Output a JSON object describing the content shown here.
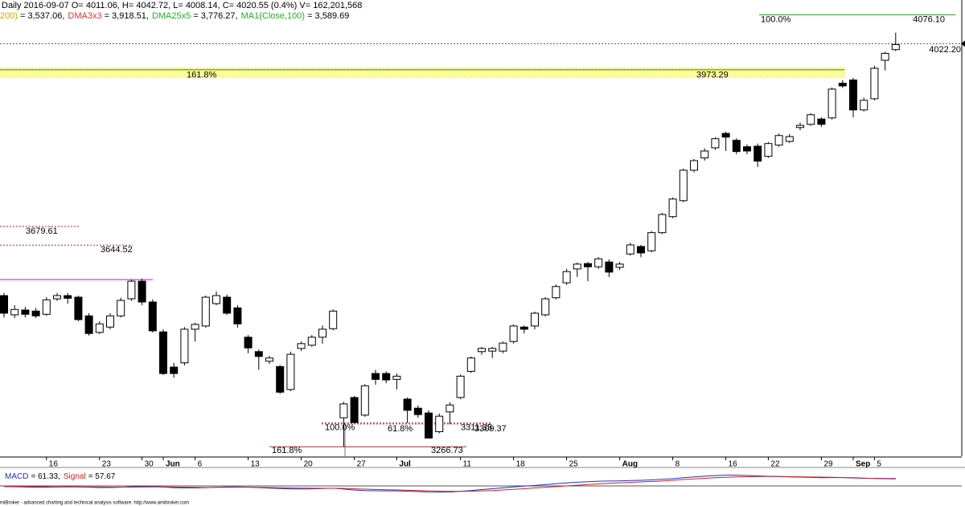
{
  "chart_data": [
    {
      "type": "candlestick",
      "title": "Daily 2016-09-07 O= 4011.06, H= 4042.72, L= 4008.14, C= 4020.55 (0.4%) V= 162,201,568",
      "indicators": [
        {
          "name": "200)",
          "text": "= 3,537.06,",
          "color": "#d4a800"
        },
        {
          "name": "DMA3x3",
          "text": "= 3,918.51,",
          "color": "#e03030"
        },
        {
          "name": "DMA25x5",
          "text": "= 3,776.27,",
          "color": "#20b020"
        },
        {
          "name": "MA1(Close,100)",
          "text": "= 3,589.69",
          "color": "#20b020"
        }
      ],
      "categories": [
        null,
        null,
        null,
        null,
        "16",
        null,
        null,
        null,
        null,
        "23",
        null,
        null,
        null,
        "30",
        null,
        "Jun",
        null,
        null,
        "6",
        null,
        null,
        null,
        null,
        "13",
        null,
        null,
        null,
        null,
        "20",
        null,
        null,
        null,
        null,
        "27",
        null,
        null,
        null,
        "Jul",
        null,
        null,
        null,
        null,
        null,
        "11",
        null,
        null,
        null,
        null,
        "18",
        null,
        null,
        null,
        null,
        "25",
        null,
        null,
        null,
        null,
        "Aug",
        null,
        null,
        null,
        null,
        "8",
        null,
        null,
        null,
        null,
        "16",
        null,
        null,
        null,
        "22",
        null,
        null,
        null,
        null,
        "29",
        null,
        null,
        "Sep",
        null,
        "5",
        null,
        null
      ],
      "open": [
        3550,
        3514,
        3523,
        3521,
        3515,
        3544,
        3550,
        3547,
        3512,
        3481,
        3491,
        3512,
        3544,
        3577,
        3538,
        3482,
        3416,
        3424,
        3487,
        3493,
        3535,
        3547,
        3527,
        3472,
        3445,
        3427,
        3417,
        3374,
        3451,
        3457,
        3472,
        3488,
        3321,
        3359,
        3326,
        3404,
        3404,
        3393,
        3356,
        3339,
        3330,
        3295,
        3332,
        3359,
        3408,
        3445,
        3446,
        3446,
        3464,
        3491,
        3493,
        3514,
        3546,
        3574,
        3600,
        3610,
        3604,
        3613,
        3603,
        3628,
        3642,
        3634,
        3668,
        3698,
        3728,
        3785,
        3808,
        3827,
        3854,
        3841,
        3829,
        3830,
        3811,
        3832,
        3839,
        3865,
        3871,
        3881,
        3883,
        3948,
        3954,
        3898,
        3919,
        3991,
        4011.06
      ],
      "high": [
        3555,
        3532,
        3529,
        3527,
        3547,
        3555,
        3555,
        3550,
        3517,
        3502,
        3517,
        3546,
        3580,
        3582,
        3543,
        3487,
        3424,
        3491,
        3499,
        3550,
        3558,
        3552,
        3532,
        3476,
        3449,
        3437,
        3420,
        3445,
        3464,
        3476,
        3494,
        3524,
        3351,
        3362,
        3384,
        3411,
        3408,
        3404,
        3359,
        3344,
        3335,
        3329,
        3350,
        3402,
        3436,
        3454,
        3454,
        3464,
        3496,
        3494,
        3520,
        3547,
        3571,
        3600,
        3612,
        3613,
        3622,
        3618,
        3613,
        3649,
        3645,
        3671,
        3705,
        3734,
        3788,
        3806,
        3826,
        3847,
        3857,
        3845,
        3833,
        3835,
        3838,
        3854,
        3853,
        3874,
        3892,
        3884,
        3940,
        3954,
        3958,
        3921,
        3981,
        4007,
        4042.72
      ],
      "low": [
        3509,
        3508,
        3509,
        3508,
        3512,
        3540,
        3535,
        3502,
        3475,
        3478,
        3487,
        3509,
        3540,
        3532,
        3481,
        3401,
        3396,
        3419,
        3464,
        3490,
        3532,
        3514,
        3490,
        3442,
        3411,
        3422,
        3366,
        3371,
        3446,
        3454,
        3460,
        3485,
        3266.73,
        3311,
        3323,
        3383,
        3386,
        3374,
        3311,
        3321,
        3282,
        3292,
        3309,
        3356,
        3405,
        3439,
        3433,
        3442,
        3460,
        3479,
        3487,
        3511,
        3543,
        3570,
        3585,
        3577,
        3600,
        3585,
        3598,
        3625,
        3622,
        3631,
        3665,
        3695,
        3725,
        3781,
        3803,
        3823,
        3821,
        3815,
        3815,
        3791,
        3808,
        3829,
        3836,
        3860,
        3868,
        3866,
        3880,
        3939,
        3884,
        3895,
        3916,
        3972,
        4008.14
      ],
      "close": [
        3517,
        3524,
        3515,
        3512,
        3542,
        3550,
        3545,
        3505,
        3479,
        3497,
        3512,
        3541,
        3577,
        3538,
        3484,
        3404,
        3404,
        3487,
        3496,
        3547,
        3550,
        3517,
        3497,
        3452,
        3436,
        3433,
        3369,
        3440,
        3460,
        3472,
        3487,
        3521,
        3347,
        3312,
        3381,
        3393,
        3392,
        3399,
        3335,
        3327,
        3283,
        3324,
        3345,
        3399,
        3433,
        3451,
        3451,
        3461,
        3493,
        3487,
        3517,
        3544,
        3567,
        3595,
        3609,
        3604,
        3619,
        3594,
        3609,
        3645,
        3630,
        3668,
        3702,
        3731,
        3785,
        3803,
        3821,
        3844,
        3847,
        3820,
        3821,
        3802,
        3835,
        3850,
        3848,
        3869,
        3889,
        3871,
        3937,
        3943,
        3898,
        3916,
        3976,
        4004,
        4020.55
      ],
      "up_color": "#ffffff",
      "down_color": "#000000",
      "ylim": [
        3249,
        4104
      ],
      "levels": [
        {
          "value": 4076.1,
          "label": "4076.10",
          "pct": "100.0%",
          "color": "#2ca02c"
        },
        {
          "value": 4022.2,
          "label": "4022.20",
          "color": "#cc2222"
        },
        {
          "value": 3973.29,
          "pct": "161.8%",
          "color": "#2c8a2c"
        },
        {
          "value": 3580,
          "color": "#e000e0"
        },
        {
          "value": 3679.61,
          "color": "#cc2222"
        },
        {
          "value": 3644.52,
          "color": "#cc2222"
        },
        {
          "value": 3311.35,
          "pct": "100.0%",
          "color": "#b03030"
        },
        {
          "value": 3309.37,
          "pct": "61.8%",
          "color": "#b03030"
        },
        {
          "value": 3266.73,
          "pct": "161.8%",
          "color": "#a03030"
        }
      ]
    },
    {
      "type": "line",
      "ylim": [
        -60,
        100
      ],
      "series": [
        {
          "name": "MACD",
          "legend_text": "= 61.33,",
          "color": "#1f2fd0",
          "values": [
            -5,
            -7,
            -9,
            -11,
            -11,
            -9,
            -7,
            -8,
            -11,
            -13,
            -13,
            -11,
            -7,
            -4,
            -5,
            -9,
            -15,
            -17,
            -17,
            -15,
            -11,
            -8,
            -8,
            -10,
            -14,
            -18,
            -22,
            -25,
            -25,
            -24,
            -22,
            -19,
            -26,
            -34,
            -38,
            -40,
            -41,
            -41,
            -44,
            -47,
            -51,
            -52,
            -51,
            -45,
            -38,
            -30,
            -23,
            -16,
            -8,
            -2,
            4,
            11,
            18,
            25,
            31,
            35,
            39,
            41,
            42,
            45,
            47,
            50,
            55,
            60,
            68,
            75,
            81,
            86,
            89,
            89,
            87,
            83,
            80,
            78,
            75,
            73,
            71,
            68,
            69,
            69,
            66,
            63,
            63,
            62,
            61.33
          ]
        },
        {
          "name": "Signal",
          "legend_text": "= 57.67",
          "color": "#d02020",
          "values": [
            -3,
            -4,
            -5,
            -6,
            -7,
            -8,
            -8,
            -8,
            -8,
            -9,
            -10,
            -10,
            -10,
            -9,
            -8,
            -8,
            -9,
            -11,
            -12,
            -13,
            -12,
            -12,
            -11,
            -11,
            -12,
            -13,
            -15,
            -17,
            -18,
            -19,
            -20,
            -20,
            -21,
            -24,
            -27,
            -29,
            -32,
            -33,
            -36,
            -38,
            -41,
            -43,
            -45,
            -45,
            -44,
            -41,
            -38,
            -33,
            -28,
            -23,
            -17,
            -12,
            -6,
            0,
            6,
            12,
            17,
            22,
            26,
            30,
            33,
            37,
            41,
            47,
            53,
            58,
            63,
            68,
            72,
            75,
            77,
            78,
            78,
            78,
            77,
            76,
            74,
            73,
            72,
            70,
            68,
            65,
            62,
            59,
            57.67
          ]
        }
      ]
    }
  ],
  "footer": "miBroker - advanced charting and technical analysis software. http://www.amibroker.com"
}
